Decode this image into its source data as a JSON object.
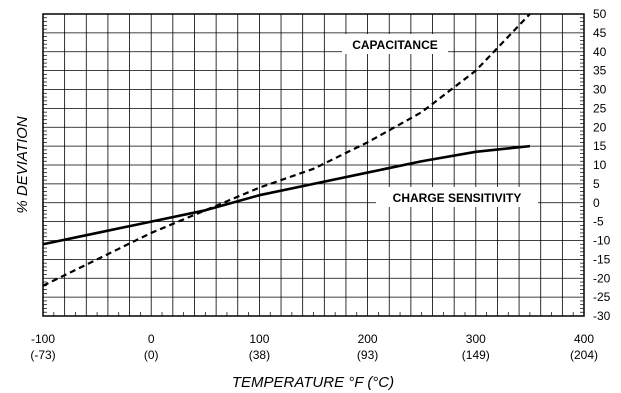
{
  "chart_data": {
    "type": "line",
    "title": "",
    "xlabel": "TEMPERATURE  °F (°C)",
    "ylabel": "% DEVIATION",
    "xlim": [
      -100,
      400
    ],
    "ylim": [
      -30,
      50
    ],
    "grid": true,
    "x_ticks": [
      {
        "value": -100,
        "label": "-100",
        "sublabel": "(-73)"
      },
      {
        "value": 0,
        "label": "0",
        "sublabel": "(0)"
      },
      {
        "value": 100,
        "label": "100",
        "sublabel": "(38)"
      },
      {
        "value": 200,
        "label": "200",
        "sublabel": "(93)"
      },
      {
        "value": 300,
        "label": "300",
        "sublabel": "(149)"
      },
      {
        "value": 400,
        "label": "400",
        "sublabel": "(204)"
      }
    ],
    "y_ticks": [
      50,
      45,
      40,
      35,
      30,
      25,
      20,
      15,
      10,
      5,
      0,
      -5,
      -10,
      -15,
      -20,
      -25,
      -30
    ],
    "series": [
      {
        "name": "CAPACITANCE",
        "style": "dashed",
        "x": [
          -100,
          -50,
          0,
          50,
          100,
          150,
          200,
          250,
          300,
          350
        ],
        "y": [
          -22,
          -15,
          -8,
          -2,
          4,
          9,
          16,
          24,
          35,
          50
        ]
      },
      {
        "name": "CHARGE SENSITIVITY",
        "style": "solid",
        "x": [
          -100,
          -50,
          0,
          50,
          100,
          150,
          200,
          250,
          300,
          350
        ],
        "y": [
          -11,
          -8,
          -5,
          -2,
          2,
          5,
          8,
          11,
          13.5,
          15
        ]
      }
    ]
  }
}
